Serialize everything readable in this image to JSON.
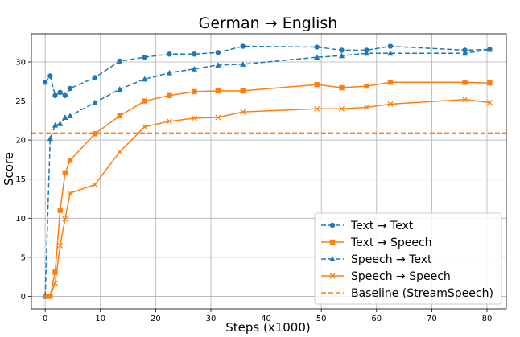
{
  "chart_data": {
    "type": "line",
    "title": "German → English",
    "xlabel": "Steps (x1000)",
    "ylabel": "Score",
    "xlim": [
      -2.5,
      83.5
    ],
    "ylim": [
      -1.6,
      33.6
    ],
    "xticks": [
      0,
      10,
      20,
      30,
      40,
      50,
      60,
      70,
      80
    ],
    "yticks": [
      0,
      5,
      10,
      15,
      20,
      25,
      30
    ],
    "grid": true,
    "legend_position": "bottom-right",
    "series": [
      {
        "name": "Text → Text",
        "color": "#1f77b4",
        "linestyle": "dashed",
        "marker": "circle",
        "x": [
          0,
          0.9,
          1.8,
          2.7,
          3.6,
          4.5,
          9,
          13.5,
          18,
          22.5,
          27,
          31.3,
          35.8,
          49.2,
          53.7,
          58.2,
          62.5,
          76,
          80.5
        ],
        "y": [
          27.4,
          28.2,
          25.7,
          26.1,
          25.7,
          26.6,
          28.0,
          30.1,
          30.6,
          31.0,
          31.0,
          31.2,
          32.0,
          31.9,
          31.5,
          31.5,
          32.0,
          31.5,
          31.6
        ]
      },
      {
        "name": "Text → Speech",
        "color": "#ff7f0e",
        "linestyle": "solid",
        "marker": "square",
        "x": [
          0,
          0.9,
          1.8,
          2.7,
          3.6,
          4.5,
          9,
          13.5,
          18,
          22.5,
          27,
          31.3,
          35.8,
          49.2,
          53.7,
          58.2,
          62.5,
          76,
          80.5
        ],
        "y": [
          0,
          0,
          3.1,
          11.0,
          15.8,
          17.4,
          20.8,
          23.1,
          25.0,
          25.7,
          26.2,
          26.3,
          26.3,
          27.1,
          26.7,
          26.9,
          27.4,
          27.4,
          27.3
        ]
      },
      {
        "name": "Speech → Text",
        "color": "#1f77b4",
        "linestyle": "dashed",
        "marker": "triangle",
        "x": [
          0,
          0.9,
          1.8,
          2.7,
          3.6,
          4.5,
          9,
          13.5,
          18,
          22.5,
          27,
          31.3,
          35.8,
          49.2,
          53.7,
          58.2,
          62.5,
          76,
          80.5
        ],
        "y": [
          0,
          20.2,
          21.9,
          22.1,
          22.9,
          23.1,
          24.8,
          26.5,
          27.8,
          28.6,
          29.1,
          29.6,
          29.7,
          30.6,
          30.8,
          31.1,
          31.1,
          31.1,
          31.6
        ]
      },
      {
        "name": "Speech → Speech",
        "color": "#ff7f0e",
        "linestyle": "solid",
        "marker": "x",
        "x": [
          0,
          0.9,
          1.8,
          2.7,
          3.6,
          4.5,
          9,
          13.5,
          18,
          22.5,
          27,
          31.3,
          35.8,
          49.2,
          53.7,
          58.2,
          62.5,
          76,
          80.5
        ],
        "y": [
          0,
          0,
          1.7,
          6.5,
          9.9,
          13.2,
          14.3,
          18.5,
          21.7,
          22.4,
          22.8,
          22.9,
          23.6,
          24.0,
          24.0,
          24.2,
          24.6,
          25.2,
          24.8
        ]
      }
    ],
    "baseline": {
      "name": "Baseline (StreamSpeech)",
      "color": "#ff7f0e",
      "linestyle": "dashed",
      "y": 20.9
    }
  }
}
